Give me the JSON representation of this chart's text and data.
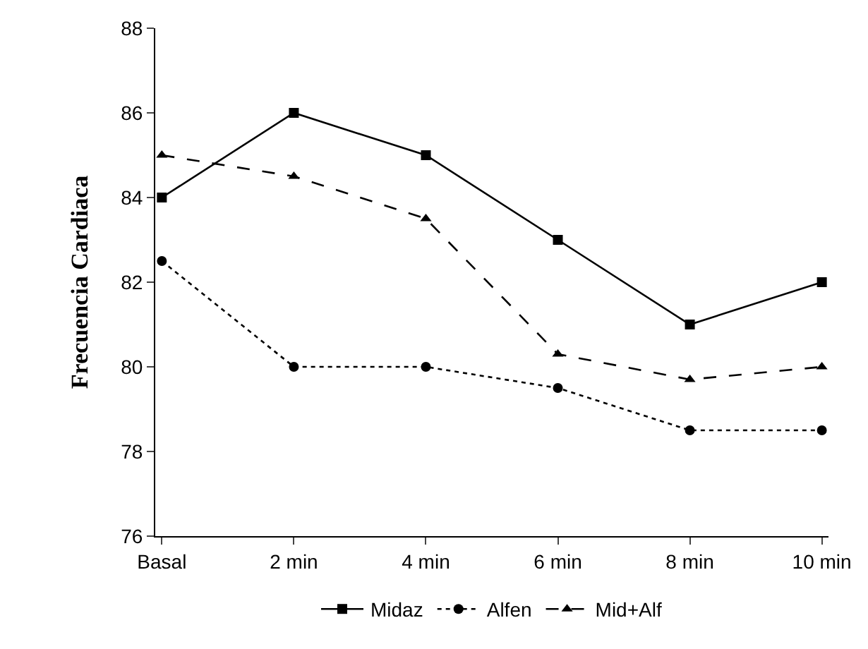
{
  "chart_data": {
    "type": "line",
    "ylabel": "Frecuencia Cardiaca",
    "categories": [
      "Basal",
      "2 min",
      "4 min",
      "6 min",
      "8 min",
      "10 min"
    ],
    "series": [
      {
        "name": "Midaz",
        "color": "#000000",
        "values": [
          84,
          86,
          85,
          83,
          81,
          82
        ],
        "marker": "square",
        "line_style": "solid"
      },
      {
        "name": "Alfen",
        "color": "#000000",
        "values": [
          82.5,
          80,
          80,
          79.5,
          78.5,
          78.5
        ],
        "marker": "circle",
        "line_style": "dotted"
      },
      {
        "name": "Mid+Alf",
        "color": "#000000",
        "values": [
          85,
          84.5,
          83.5,
          80.3,
          79.7,
          80
        ],
        "marker": "triangle",
        "line_style": "dashed"
      }
    ],
    "ylim": [
      76,
      88
    ],
    "yticks": [
      76,
      78,
      80,
      82,
      84,
      86,
      88
    ],
    "legend": "bottom"
  }
}
